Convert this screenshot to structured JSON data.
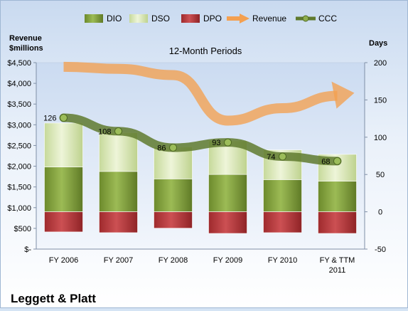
{
  "company": "Leggett & Platt",
  "chart_data": {
    "type": "bar",
    "title": "12-Month Periods",
    "categories": [
      [
        "FY 2006"
      ],
      [
        "FY 2007"
      ],
      [
        "FY 2008"
      ],
      [
        "FY 2009"
      ],
      [
        "FY 2010"
      ],
      [
        "FY & TTM",
        "2011"
      ]
    ],
    "left_axis": {
      "label_lines": [
        "Revenue",
        "$millions"
      ],
      "min": 0,
      "max": 4500,
      "step": 500,
      "tick_labels": [
        "$-",
        "$500",
        "$1,000",
        "$1,500",
        "$2,000",
        "$2,500",
        "$3,000",
        "$3,500",
        "$4,000",
        "$4,500"
      ]
    },
    "right_axis": {
      "label": "Days",
      "min": -50,
      "max": 200,
      "step": 50,
      "tick_labels": [
        "-50",
        "0",
        "50",
        "100",
        "150",
        "200"
      ]
    },
    "legend": {
      "position": "top",
      "items": [
        {
          "name": "DIO",
          "type": "box",
          "color": "#7f9e3d"
        },
        {
          "name": "DSO",
          "type": "box",
          "color": "#d8e8b0"
        },
        {
          "name": "DPO",
          "type": "box",
          "color": "#b5373a"
        },
        {
          "name": "Revenue",
          "type": "arrow",
          "color": "#f4a050"
        },
        {
          "name": "CCC",
          "type": "line",
          "color": "#5f7a2e"
        }
      ]
    },
    "series": [
      {
        "name": "DIO",
        "axis": "days",
        "values": [
          60,
          54,
          44,
          50,
          43,
          41
        ],
        "color": "#7f9e3d"
      },
      {
        "name": "DSO",
        "axis": "days",
        "values": [
          59,
          52,
          43,
          45,
          40,
          36
        ],
        "color": "#d8e8b0"
      },
      {
        "name": "DPO",
        "axis": "days",
        "values": [
          -27,
          -28,
          -22,
          -29,
          -28,
          -29
        ],
        "color": "#b5373a"
      },
      {
        "name": "CCC",
        "axis": "days",
        "values": [
          126,
          108,
          86,
          93,
          74,
          68
        ],
        "data_labels": [
          "126",
          "108",
          "86",
          "93",
          "74",
          "68"
        ],
        "color": "#5f7a2e"
      },
      {
        "name": "Revenue",
        "axis": "revenue",
        "values": [
          4400,
          4350,
          4200,
          3100,
          3400,
          3700
        ],
        "color": "#f4a050"
      }
    ],
    "grid": false
  }
}
